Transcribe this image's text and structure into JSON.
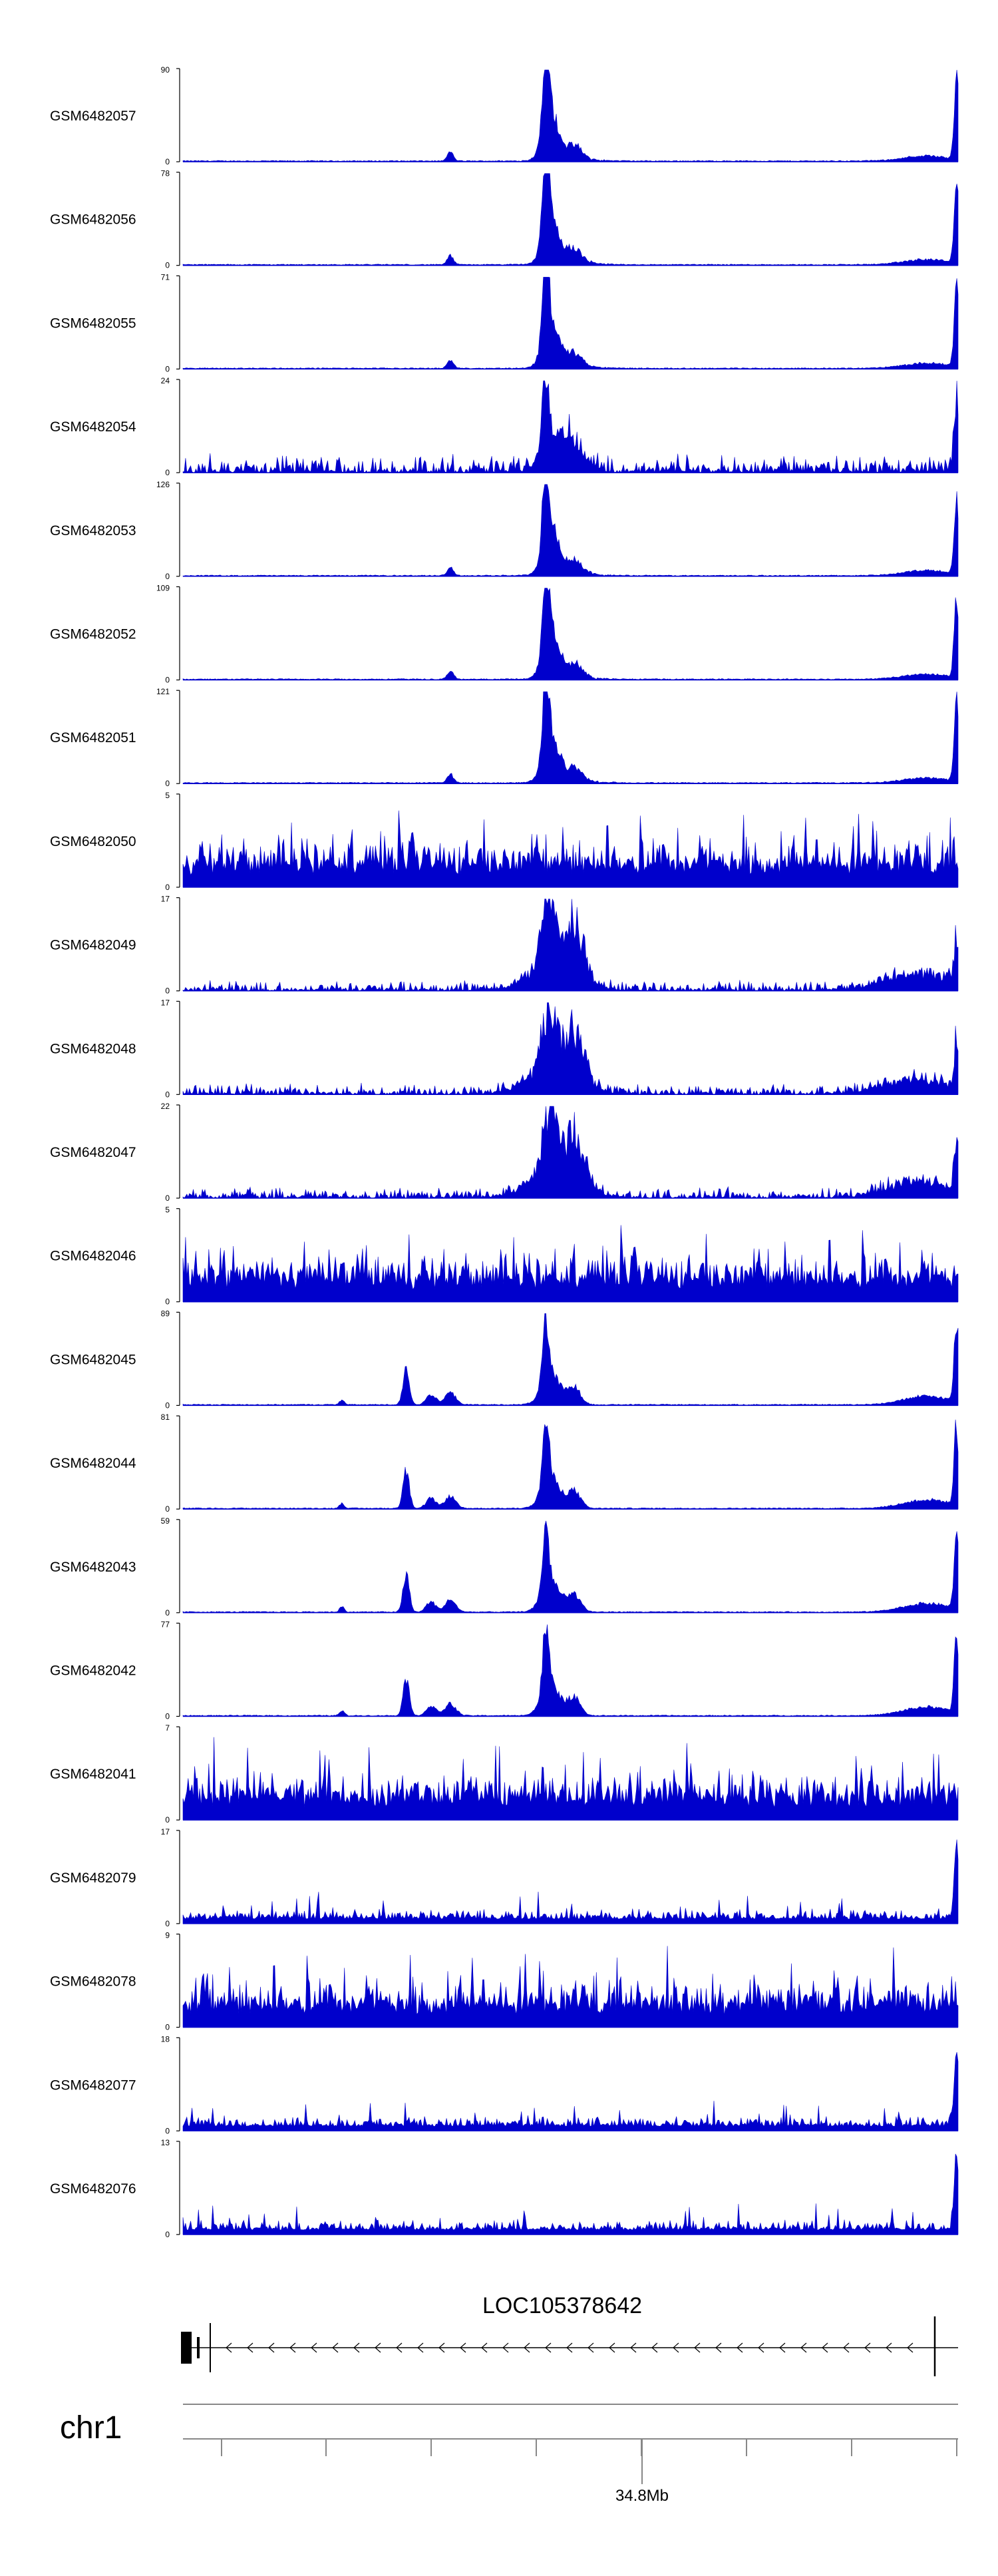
{
  "chart_data": {
    "type": "area",
    "description": "Genome browser coverage tracks",
    "colors": {
      "signal": "#0000cc",
      "axis": "#000000",
      "gene": "#000000"
    },
    "tracks": [
      {
        "name": "GSM6482057",
        "max": 90,
        "min": 0,
        "pattern": "peak"
      },
      {
        "name": "GSM6482056",
        "max": 78,
        "min": 0,
        "pattern": "peak"
      },
      {
        "name": "GSM6482055",
        "max": 71,
        "min": 0,
        "pattern": "peak"
      },
      {
        "name": "GSM6482054",
        "max": 24,
        "min": 0,
        "pattern": "noisy-peak"
      },
      {
        "name": "GSM6482053",
        "max": 126,
        "min": 0,
        "pattern": "peak"
      },
      {
        "name": "GSM6482052",
        "max": 109,
        "min": 0,
        "pattern": "peak"
      },
      {
        "name": "GSM6482051",
        "max": 121,
        "min": 0,
        "pattern": "peak"
      },
      {
        "name": "GSM6482050",
        "max": 5,
        "min": 0,
        "pattern": "noise"
      },
      {
        "name": "GSM6482049",
        "max": 17,
        "min": 0,
        "pattern": "broad"
      },
      {
        "name": "GSM6482048",
        "max": 17,
        "min": 0,
        "pattern": "broad"
      },
      {
        "name": "GSM6482047",
        "max": 22,
        "min": 0,
        "pattern": "broad"
      },
      {
        "name": "GSM6482046",
        "max": 5,
        "min": 0,
        "pattern": "noise"
      },
      {
        "name": "GSM6482045",
        "max": 89,
        "min": 0,
        "pattern": "triple"
      },
      {
        "name": "GSM6482044",
        "max": 81,
        "min": 0,
        "pattern": "triple"
      },
      {
        "name": "GSM6482043",
        "max": 59,
        "min": 0,
        "pattern": "triple"
      },
      {
        "name": "GSM6482042",
        "max": 77,
        "min": 0,
        "pattern": "triple"
      },
      {
        "name": "GSM6482041",
        "max": 7,
        "min": 0,
        "pattern": "noise"
      },
      {
        "name": "GSM6482079",
        "max": 17,
        "min": 0,
        "pattern": "low-noise"
      },
      {
        "name": "GSM6482078",
        "max": 9,
        "min": 0,
        "pattern": "noise"
      },
      {
        "name": "GSM6482077",
        "max": 18,
        "min": 0,
        "pattern": "low-noise"
      },
      {
        "name": "GSM6482076",
        "max": 13,
        "min": 0,
        "pattern": "low-noise"
      }
    ],
    "gene": {
      "name": "LOC105378642",
      "strand": "-"
    },
    "chromosome": {
      "name": "chr1",
      "tick_label": "34.8Mb"
    }
  }
}
